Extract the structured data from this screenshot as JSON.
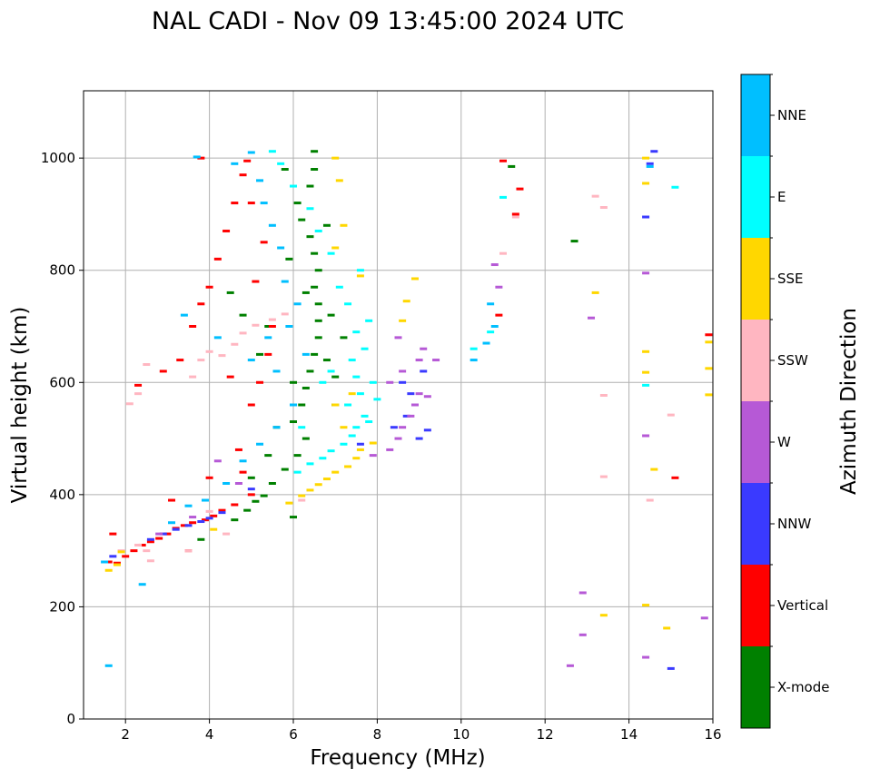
{
  "chart_data": {
    "type": "scatter",
    "title": "NAL CADI - Nov 09 13:45:00 2024 UTC",
    "xlabel": "Frequency (MHz)",
    "ylabel": "Virtual height (km)",
    "xlim": [
      1,
      16
    ],
    "ylim": [
      0,
      1120
    ],
    "xticks": [
      2,
      4,
      6,
      8,
      10,
      12,
      14,
      16
    ],
    "yticks": [
      0,
      200,
      400,
      600,
      800,
      1000
    ],
    "grid": true,
    "colorbar": {
      "label": "Azimuth Direction",
      "categories": [
        "X-mode",
        "Vertical",
        "NNW",
        "W",
        "SSW",
        "SSE",
        "E",
        "NNE"
      ],
      "colors": [
        "#008000",
        "#ff0000",
        "#3a3aff",
        "#b659d6",
        "#ffb6c1",
        "#ffd700",
        "#00ffff",
        "#00bfff"
      ]
    },
    "series": [
      {
        "name": "X-mode",
        "points": [
          [
            4.6,
            355
          ],
          [
            4.9,
            372
          ],
          [
            5.1,
            388
          ],
          [
            5.3,
            398
          ],
          [
            5.5,
            420
          ],
          [
            5.8,
            445
          ],
          [
            6.1,
            470
          ],
          [
            6.3,
            500
          ],
          [
            6.0,
            530
          ],
          [
            6.2,
            560
          ],
          [
            6.3,
            590
          ],
          [
            6.4,
            620
          ],
          [
            6.5,
            650
          ],
          [
            6.6,
            680
          ],
          [
            6.6,
            710
          ],
          [
            6.6,
            740
          ],
          [
            6.5,
            770
          ],
          [
            6.6,
            800
          ],
          [
            6.5,
            830
          ],
          [
            6.4,
            860
          ],
          [
            6.2,
            890
          ],
          [
            6.1,
            920
          ],
          [
            6.4,
            950
          ],
          [
            6.5,
            980
          ],
          [
            6.5,
            1012
          ],
          [
            5.8,
            980
          ],
          [
            5.4,
            700
          ],
          [
            4.8,
            720
          ],
          [
            4.5,
            760
          ],
          [
            5.6,
            520
          ],
          [
            6.8,
            640
          ],
          [
            7.0,
            610
          ],
          [
            7.2,
            680
          ],
          [
            3.8,
            320
          ],
          [
            5.0,
            430
          ],
          [
            5.4,
            470
          ],
          [
            6.9,
            720
          ],
          [
            6.3,
            760
          ],
          [
            5.9,
            820
          ],
          [
            7.0,
            560
          ],
          [
            11.2,
            985
          ],
          [
            12.7,
            852
          ],
          [
            6.0,
            360
          ],
          [
            6.8,
            880
          ],
          [
            5.2,
            650
          ],
          [
            6.0,
            600
          ]
        ]
      },
      {
        "name": "Vertical",
        "points": [
          [
            1.6,
            280
          ],
          [
            1.8,
            278
          ],
          [
            2.0,
            290
          ],
          [
            2.2,
            300
          ],
          [
            2.4,
            310
          ],
          [
            2.6,
            316
          ],
          [
            2.8,
            322
          ],
          [
            3.0,
            330
          ],
          [
            3.2,
            340
          ],
          [
            3.4,
            345
          ],
          [
            3.6,
            350
          ],
          [
            3.9,
            355
          ],
          [
            4.1,
            362
          ],
          [
            4.3,
            372
          ],
          [
            4.6,
            382
          ],
          [
            3.5,
            300
          ],
          [
            3.3,
            640
          ],
          [
            3.6,
            700
          ],
          [
            3.8,
            740
          ],
          [
            4.0,
            770
          ],
          [
            4.2,
            820
          ],
          [
            4.4,
            870
          ],
          [
            4.6,
            920
          ],
          [
            4.8,
            970
          ],
          [
            4.9,
            995
          ],
          [
            2.3,
            595
          ],
          [
            2.9,
            620
          ],
          [
            3.8,
            1000
          ],
          [
            5.0,
            400
          ],
          [
            4.8,
            440
          ],
          [
            4.7,
            480
          ],
          [
            5.0,
            560
          ],
          [
            5.2,
            600
          ],
          [
            5.4,
            650
          ],
          [
            5.5,
            700
          ],
          [
            5.1,
            780
          ],
          [
            5.3,
            850
          ],
          [
            5.0,
            920
          ],
          [
            11.0,
            995
          ],
          [
            11.4,
            945
          ],
          [
            11.3,
            900
          ],
          [
            15.1,
            430
          ],
          [
            15.9,
            685
          ],
          [
            10.9,
            720
          ],
          [
            4.5,
            610
          ],
          [
            3.1,
            390
          ],
          [
            4.0,
            430
          ],
          [
            1.7,
            330
          ]
        ]
      },
      {
        "name": "NNW",
        "points": [
          [
            2.6,
            320
          ],
          [
            2.9,
            330
          ],
          [
            3.2,
            338
          ],
          [
            3.5,
            345
          ],
          [
            3.8,
            352
          ],
          [
            4.0,
            358
          ],
          [
            4.3,
            368
          ],
          [
            8.4,
            520
          ],
          [
            8.7,
            540
          ],
          [
            8.9,
            560
          ],
          [
            9.0,
            500
          ],
          [
            9.2,
            515
          ],
          [
            8.6,
            600
          ],
          [
            8.8,
            580
          ],
          [
            9.1,
            620
          ],
          [
            7.6,
            490
          ],
          [
            14.4,
            895
          ],
          [
            14.5,
            990
          ],
          [
            15.0,
            90
          ],
          [
            14.6,
            1012
          ],
          [
            5.0,
            410
          ],
          [
            1.7,
            290
          ]
        ]
      },
      {
        "name": "W",
        "points": [
          [
            8.3,
            480
          ],
          [
            8.5,
            500
          ],
          [
            8.6,
            520
          ],
          [
            8.8,
            540
          ],
          [
            8.9,
            560
          ],
          [
            9.0,
            580
          ],
          [
            9.2,
            575
          ],
          [
            9.0,
            640
          ],
          [
            9.1,
            660
          ],
          [
            8.6,
            620
          ],
          [
            8.5,
            680
          ],
          [
            8.3,
            600
          ],
          [
            9.4,
            640
          ],
          [
            7.9,
            470
          ],
          [
            10.9,
            770
          ],
          [
            10.8,
            810
          ],
          [
            13.1,
            715
          ],
          [
            14.4,
            795
          ],
          [
            14.4,
            505
          ],
          [
            14.4,
            110
          ],
          [
            12.6,
            95
          ],
          [
            12.9,
            150
          ],
          [
            12.9,
            225
          ],
          [
            15.8,
            180
          ],
          [
            3.6,
            360
          ],
          [
            4.7,
            420
          ],
          [
            2.8,
            330
          ],
          [
            4.2,
            460
          ]
        ]
      },
      {
        "name": "SSW",
        "points": [
          [
            1.9,
            300
          ],
          [
            2.3,
            310
          ],
          [
            2.5,
            300
          ],
          [
            2.6,
            282
          ],
          [
            2.5,
            632
          ],
          [
            2.1,
            562
          ],
          [
            2.3,
            580
          ],
          [
            3.6,
            610
          ],
          [
            3.8,
            640
          ],
          [
            4.0,
            655
          ],
          [
            4.3,
            648
          ],
          [
            4.6,
            668
          ],
          [
            4.8,
            688
          ],
          [
            5.1,
            702
          ],
          [
            5.5,
            712
          ],
          [
            5.8,
            722
          ],
          [
            3.5,
            300
          ],
          [
            4.0,
            370
          ],
          [
            4.4,
            330
          ],
          [
            13.4,
            577
          ],
          [
            13.4,
            432
          ],
          [
            13.2,
            932
          ],
          [
            13.4,
            912
          ],
          [
            14.5,
            390
          ],
          [
            15.0,
            542
          ],
          [
            11.0,
            830
          ],
          [
            11.3,
            895
          ],
          [
            6.2,
            390
          ]
        ]
      },
      {
        "name": "SSE",
        "points": [
          [
            1.6,
            265
          ],
          [
            1.8,
            275
          ],
          [
            1.9,
            298
          ],
          [
            5.9,
            385
          ],
          [
            6.2,
            398
          ],
          [
            6.4,
            408
          ],
          [
            6.6,
            418
          ],
          [
            6.8,
            428
          ],
          [
            7.0,
            440
          ],
          [
            7.3,
            450
          ],
          [
            7.5,
            465
          ],
          [
            7.6,
            480
          ],
          [
            7.9,
            492
          ],
          [
            7.2,
            520
          ],
          [
            7.0,
            560
          ],
          [
            7.4,
            580
          ],
          [
            8.6,
            710
          ],
          [
            8.9,
            785
          ],
          [
            8.7,
            745
          ],
          [
            7.0,
            840
          ],
          [
            7.2,
            880
          ],
          [
            7.1,
            960
          ],
          [
            7.0,
            1000
          ],
          [
            14.4,
            955
          ],
          [
            14.4,
            1000
          ],
          [
            14.4,
            655
          ],
          [
            14.4,
            618
          ],
          [
            13.2,
            760
          ],
          [
            14.6,
            445
          ],
          [
            14.9,
            162
          ],
          [
            13.4,
            185
          ],
          [
            14.4,
            203
          ],
          [
            15.9,
            578
          ],
          [
            15.9,
            625
          ],
          [
            15.9,
            672
          ],
          [
            4.1,
            338
          ],
          [
            7.6,
            790
          ]
        ]
      },
      {
        "name": "E",
        "points": [
          [
            6.1,
            440
          ],
          [
            6.4,
            455
          ],
          [
            6.7,
            465
          ],
          [
            6.9,
            478
          ],
          [
            7.2,
            490
          ],
          [
            7.4,
            505
          ],
          [
            7.5,
            520
          ],
          [
            7.7,
            540
          ],
          [
            7.3,
            560
          ],
          [
            7.6,
            580
          ],
          [
            7.5,
            610
          ],
          [
            7.4,
            640
          ],
          [
            7.7,
            660
          ],
          [
            7.5,
            690
          ],
          [
            7.8,
            710
          ],
          [
            7.3,
            740
          ],
          [
            7.1,
            770
          ],
          [
            7.6,
            800
          ],
          [
            6.9,
            830
          ],
          [
            6.6,
            870
          ],
          [
            6.4,
            910
          ],
          [
            6.0,
            950
          ],
          [
            5.7,
            990
          ],
          [
            5.5,
            1012
          ],
          [
            6.9,
            620
          ],
          [
            6.7,
            600
          ],
          [
            7.8,
            530
          ],
          [
            6.2,
            520
          ],
          [
            7.9,
            600
          ],
          [
            8.0,
            570
          ],
          [
            14.4,
            595
          ],
          [
            15.1,
            948
          ],
          [
            10.3,
            660
          ],
          [
            10.7,
            690
          ],
          [
            11.0,
            930
          ]
        ]
      },
      {
        "name": "NNE",
        "points": [
          [
            1.5,
            280
          ],
          [
            1.6,
            95
          ],
          [
            2.4,
            240
          ],
          [
            3.1,
            350
          ],
          [
            3.5,
            380
          ],
          [
            3.9,
            390
          ],
          [
            4.4,
            420
          ],
          [
            4.8,
            460
          ],
          [
            5.2,
            490
          ],
          [
            5.6,
            520
          ],
          [
            6.0,
            560
          ],
          [
            5.6,
            620
          ],
          [
            5.4,
            680
          ],
          [
            5.9,
            700
          ],
          [
            6.1,
            740
          ],
          [
            5.8,
            780
          ],
          [
            5.7,
            840
          ],
          [
            5.5,
            880
          ],
          [
            5.3,
            920
          ],
          [
            5.2,
            960
          ],
          [
            5.0,
            1010
          ],
          [
            4.6,
            990
          ],
          [
            3.7,
            1002
          ],
          [
            3.4,
            720
          ],
          [
            4.2,
            680
          ],
          [
            10.3,
            640
          ],
          [
            10.6,
            670
          ],
          [
            10.8,
            700
          ],
          [
            10.7,
            740
          ],
          [
            14.5,
            985
          ],
          [
            6.3,
            650
          ],
          [
            5.0,
            640
          ]
        ]
      }
    ]
  }
}
